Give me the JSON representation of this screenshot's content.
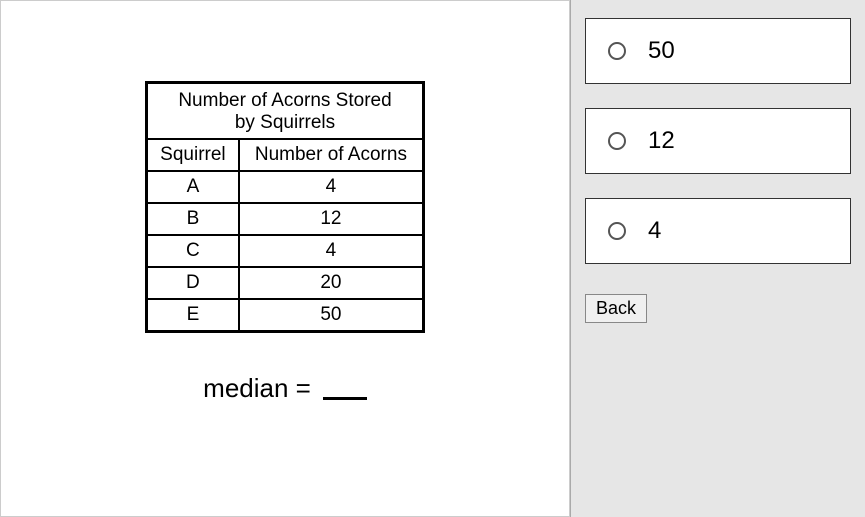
{
  "question": {
    "table": {
      "title_line1": "Number of Acorns Stored",
      "title_line2": "by Squirrels",
      "columns": [
        "Squirrel",
        "Number of Acorns"
      ],
      "rows": [
        [
          "A",
          "4"
        ],
        [
          "B",
          "12"
        ],
        [
          "C",
          "4"
        ],
        [
          "D",
          "20"
        ],
        [
          "E",
          "50"
        ]
      ]
    },
    "prompt_prefix": "median =",
    "prompt_blank": ""
  },
  "answers": [
    {
      "label": "50"
    },
    {
      "label": "12"
    },
    {
      "label": "4"
    }
  ],
  "buttons": {
    "back_label": "Back"
  }
}
